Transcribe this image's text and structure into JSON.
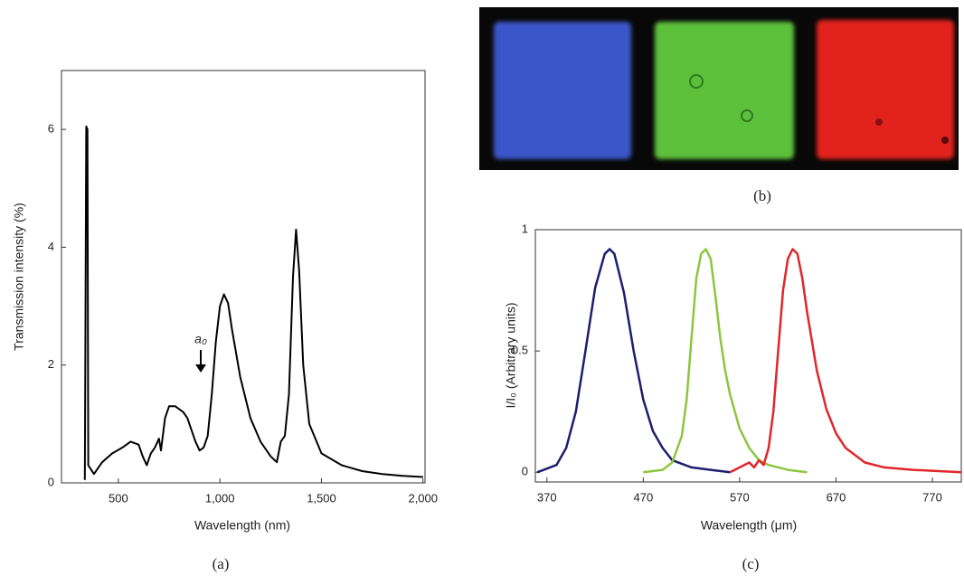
{
  "chart_data": [
    {
      "type": "line",
      "caption": "(a)",
      "x_label": "Wavelength (nm)",
      "y_label": "Transmission intensity (%)",
      "annotation": "a₀",
      "xlim": [
        220,
        2010
      ],
      "ylim": [
        0,
        7
      ],
      "xticks": [
        500,
        {
          "value": 1000,
          "label": "1,000"
        },
        {
          "value": 1500,
          "label": "1,500"
        },
        {
          "value": 2000,
          "label": "2,000"
        }
      ],
      "yticks": [
        0,
        2,
        4,
        6
      ],
      "frame": true,
      "series": [
        {
          "color": "#000000",
          "x": [
            335,
            342,
            348,
            352,
            380,
            420,
            470,
            520,
            560,
            600,
            620,
            640,
            660,
            680,
            700,
            710,
            730,
            750,
            780,
            800,
            820,
            840,
            860,
            880,
            900,
            920,
            940,
            960,
            980,
            1000,
            1020,
            1040,
            1060,
            1100,
            1150,
            1200,
            1250,
            1280,
            1300,
            1320,
            1340,
            1360,
            1375,
            1390,
            1410,
            1440,
            1500,
            1600,
            1700,
            1800,
            1900,
            2000
          ],
          "values": [
            0.05,
            6.05,
            6.0,
            0.3,
            0.15,
            0.35,
            0.5,
            0.6,
            0.7,
            0.65,
            0.45,
            0.3,
            0.5,
            0.6,
            0.75,
            0.55,
            1.1,
            1.3,
            1.3,
            1.25,
            1.2,
            1.1,
            0.9,
            0.7,
            0.55,
            0.6,
            0.8,
            1.5,
            2.4,
            3.0,
            3.2,
            3.05,
            2.6,
            1.8,
            1.1,
            0.7,
            0.45,
            0.35,
            0.7,
            0.8,
            1.5,
            3.5,
            4.3,
            3.6,
            2.0,
            1.0,
            0.5,
            0.3,
            0.2,
            0.15,
            0.12,
            0.1
          ]
        }
      ]
    },
    {
      "type": "line",
      "caption": "(c)",
      "x_label": "Wavelength (μm)",
      "y_label": "I/I₀ (Arbitrary units)",
      "xlim": [
        358,
        800
      ],
      "ylim": [
        -0.04,
        1
      ],
      "xticks": [
        370,
        470,
        570,
        670,
        770
      ],
      "yticks": [
        0,
        0.5,
        1
      ],
      "frame": true,
      "series": [
        {
          "color": "#1c1e6e",
          "x": [
            360,
            380,
            390,
            400,
            410,
            420,
            430,
            435,
            440,
            450,
            460,
            470,
            480,
            490,
            500,
            520,
            540,
            560
          ],
          "values": [
            0.0,
            0.03,
            0.1,
            0.25,
            0.5,
            0.76,
            0.9,
            0.92,
            0.9,
            0.74,
            0.5,
            0.3,
            0.17,
            0.1,
            0.05,
            0.02,
            0.01,
            0.0
          ]
        },
        {
          "color": "#8cc63f",
          "x": [
            470,
            490,
            500,
            510,
            515,
            520,
            525,
            530,
            535,
            540,
            545,
            550,
            555,
            560,
            570,
            580,
            590,
            600,
            620,
            640
          ],
          "values": [
            0.0,
            0.01,
            0.04,
            0.15,
            0.3,
            0.55,
            0.8,
            0.9,
            0.92,
            0.88,
            0.72,
            0.55,
            0.42,
            0.32,
            0.18,
            0.1,
            0.05,
            0.03,
            0.01,
            0.0
          ]
        },
        {
          "color": "#e0262a",
          "x": [
            560,
            570,
            580,
            585,
            590,
            595,
            600,
            605,
            610,
            615,
            620,
            625,
            630,
            635,
            640,
            650,
            660,
            670,
            680,
            700,
            720,
            750,
            800
          ],
          "values": [
            0.0,
            0.02,
            0.04,
            0.02,
            0.05,
            0.03,
            0.1,
            0.25,
            0.5,
            0.75,
            0.88,
            0.92,
            0.9,
            0.8,
            0.66,
            0.42,
            0.26,
            0.16,
            0.1,
            0.04,
            0.02,
            0.01,
            0.0
          ]
        }
      ]
    }
  ],
  "image_b": {
    "caption": "(b)"
  }
}
